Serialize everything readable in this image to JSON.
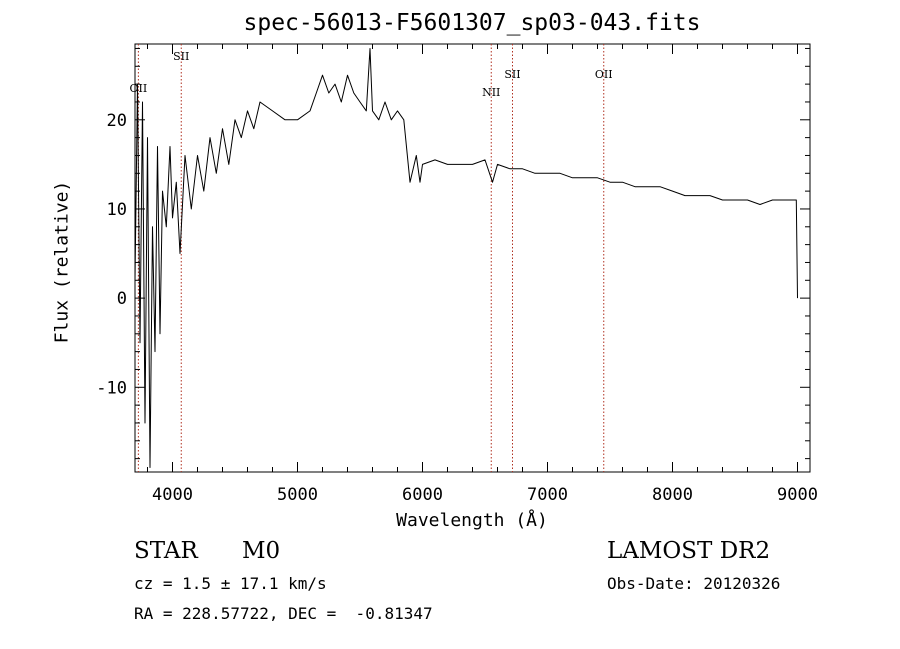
{
  "chart_data": {
    "type": "line",
    "title": "spec-56013-F5601307_sp03-043.fits",
    "xlabel": "Wavelength (Å)",
    "ylabel": "Flux (relative)",
    "xlim": [
      3700,
      9100
    ],
    "ylim": [
      -19.5,
      28.5
    ],
    "xticks": [
      4000,
      5000,
      6000,
      7000,
      8000,
      9000
    ],
    "yticks": [
      -10,
      0,
      10,
      20
    ],
    "grid": false,
    "lines": [
      {
        "label": "OII",
        "x": 3727
      },
      {
        "label": "SII",
        "x": 4070
      },
      {
        "label": "NII",
        "x": 6550
      },
      {
        "label": "SII",
        "x": 6720
      },
      {
        "label": "OII",
        "x": 7450
      }
    ],
    "series": [
      {
        "x": [
          3700,
          3720,
          3740,
          3760,
          3780,
          3800,
          3820,
          3840,
          3860,
          3880,
          3900,
          3920,
          3950,
          3980,
          4000,
          4030,
          4060,
          4100,
          4150,
          4200,
          4250,
          4300,
          4350,
          4400,
          4450,
          4500,
          4550,
          4600,
          4650,
          4700,
          4800,
          4900,
          5000,
          5100,
          5150,
          5200,
          5250,
          5300,
          5350,
          5400,
          5450,
          5500,
          5550,
          5580,
          5600,
          5650,
          5700,
          5750,
          5800,
          5850,
          5900,
          5950,
          5980,
          6000,
          6100,
          6200,
          6300,
          6400,
          6500,
          6560,
          6600,
          6700,
          6800,
          6900,
          7000,
          7100,
          7200,
          7300,
          7400,
          7500,
          7600,
          7700,
          7800,
          7900,
          8000,
          8100,
          8200,
          8300,
          8400,
          8500,
          8600,
          8700,
          8800,
          8900,
          8990,
          9000
        ],
        "y": [
          2,
          24,
          -5,
          22,
          -14,
          18,
          -19,
          8,
          -6,
          17,
          -4,
          12,
          8,
          17,
          9,
          13,
          5,
          16,
          10,
          16,
          12,
          18,
          14,
          19,
          15,
          20,
          18,
          21,
          19,
          22,
          21,
          20,
          20,
          21,
          23,
          25,
          23,
          24,
          22,
          25,
          23,
          22,
          21,
          28,
          21,
          20,
          22,
          20,
          21,
          20,
          13,
          16,
          13,
          15,
          15.5,
          15,
          15,
          15,
          15.5,
          13,
          15,
          14.5,
          14.5,
          14,
          14,
          14,
          13.5,
          13.5,
          13.5,
          13,
          13,
          12.5,
          12.5,
          12.5,
          12,
          11.5,
          11.5,
          11.5,
          11,
          11,
          11,
          10.5,
          11,
          11,
          11,
          0
        ]
      }
    ]
  },
  "footer": {
    "star_type": "STAR",
    "subclass": "M0",
    "survey": "LAMOST DR2",
    "cz": "cz = 1.5 ± 17.1 km/s",
    "obs_date": "Obs-Date: 20120326",
    "coords": "RA = 228.57722, DEC =  -0.81347"
  }
}
